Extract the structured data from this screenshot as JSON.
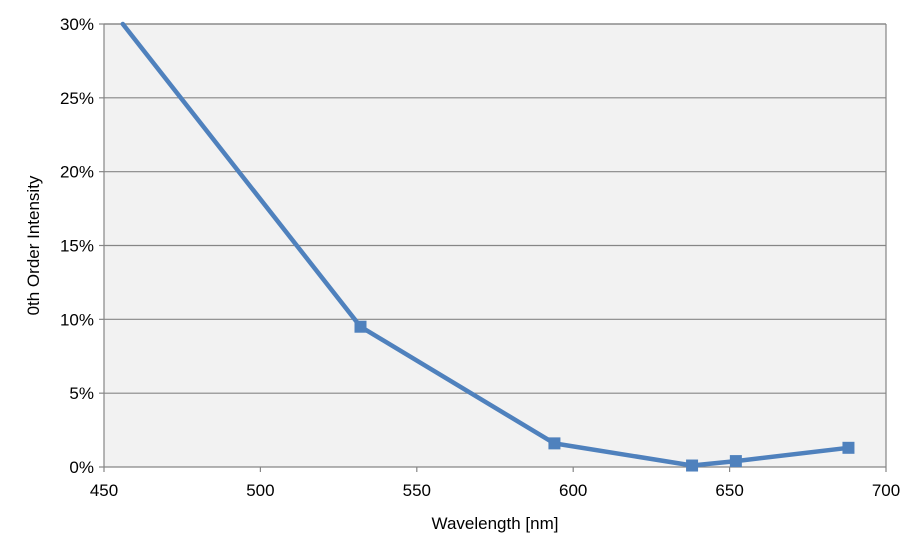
{
  "chart_data": {
    "type": "line",
    "title": "",
    "xlabel": "Wavelength [nm]",
    "ylabel": "0th Order Intensity",
    "xlim": [
      450,
      700
    ],
    "ylim": [
      0,
      30
    ],
    "x_ticks": [
      450,
      500,
      550,
      600,
      650,
      700
    ],
    "y_ticks": [
      0,
      5,
      10,
      15,
      20,
      25,
      30
    ],
    "y_tick_labels": [
      "0%",
      "5%",
      "10%",
      "15%",
      "20%",
      "25%",
      "30%"
    ],
    "grid": "horizontal",
    "legend": "none",
    "series": [
      {
        "x": [
          456,
          532,
          594,
          638,
          652,
          688
        ],
        "y": [
          30,
          9.5,
          1.6,
          0.1,
          0.4,
          1.3
        ],
        "markers": [
          false,
          true,
          true,
          true,
          true,
          true
        ],
        "color": "#4F81BD"
      }
    ],
    "plot_background": "#F2F2F2",
    "grid_color": "#868686"
  }
}
